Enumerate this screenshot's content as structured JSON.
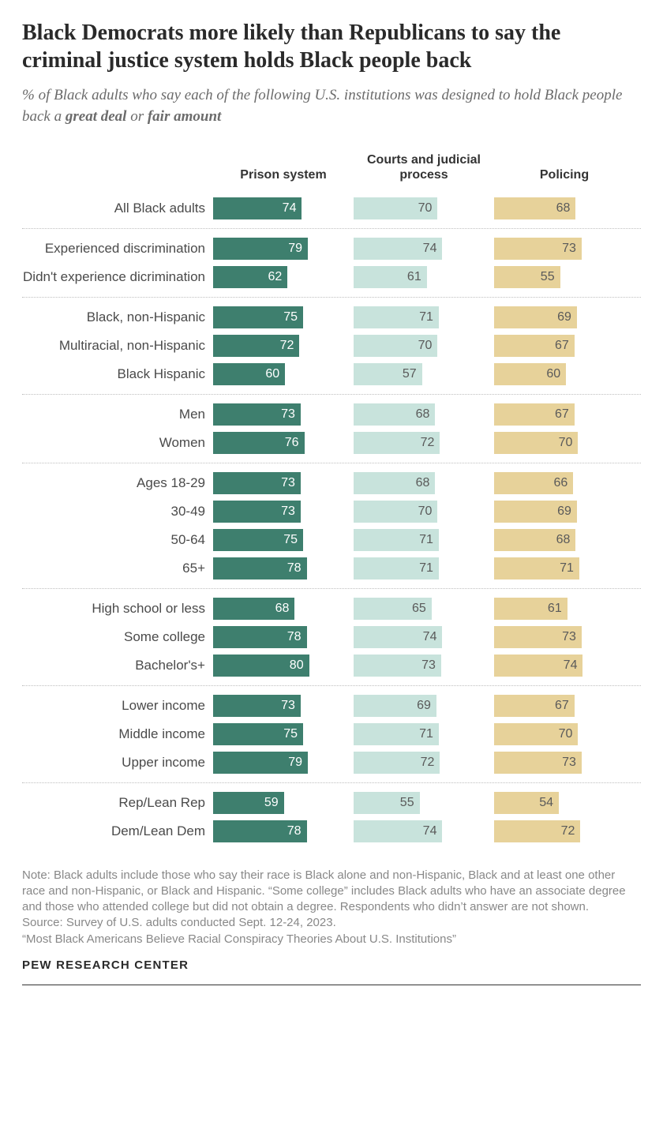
{
  "title": "Black Democrats more likely than Republicans to say the criminal justice system holds Black people back",
  "subtitle_pre": "% of Black adults who say each of the following U.S. institutions was designed to hold Black people back a ",
  "subtitle_b1": "great deal",
  "subtitle_mid": " or ",
  "subtitle_b2": "fair amount",
  "columns": [
    {
      "label": "Prison system",
      "color": "#3e7f6e",
      "text_color": "#ffffff"
    },
    {
      "label": "Courts and judicial process",
      "color": "#c8e3dc",
      "text_color": "#5a5a5a"
    },
    {
      "label": "Policing",
      "color": "#e7d29a",
      "text_color": "#5a5a5a"
    }
  ],
  "max_value": 100,
  "groups": [
    {
      "rows": [
        {
          "label": "All Black adults",
          "values": [
            74,
            70,
            68
          ]
        }
      ]
    },
    {
      "rows": [
        {
          "label": "Experienced discrimination",
          "values": [
            79,
            74,
            73
          ]
        },
        {
          "label": "Didn't experience dicrimination",
          "values": [
            62,
            61,
            55
          ]
        }
      ]
    },
    {
      "rows": [
        {
          "label": "Black, non-Hispanic",
          "values": [
            75,
            71,
            69
          ]
        },
        {
          "label": "Multiracial, non-Hispanic",
          "values": [
            72,
            70,
            67
          ]
        },
        {
          "label": "Black Hispanic",
          "values": [
            60,
            57,
            60
          ]
        }
      ]
    },
    {
      "rows": [
        {
          "label": "Men",
          "values": [
            73,
            68,
            67
          ]
        },
        {
          "label": "Women",
          "values": [
            76,
            72,
            70
          ]
        }
      ]
    },
    {
      "rows": [
        {
          "label": "Ages 18-29",
          "values": [
            73,
            68,
            66
          ]
        },
        {
          "label": "30-49",
          "values": [
            73,
            70,
            69
          ]
        },
        {
          "label": "50-64",
          "values": [
            75,
            71,
            68
          ]
        },
        {
          "label": "65+",
          "values": [
            78,
            71,
            71
          ]
        }
      ]
    },
    {
      "rows": [
        {
          "label": "High school or less",
          "values": [
            68,
            65,
            61
          ]
        },
        {
          "label": "Some college",
          "values": [
            78,
            74,
            73
          ]
        },
        {
          "label": "Bachelor's+",
          "values": [
            80,
            73,
            74
          ]
        }
      ]
    },
    {
      "rows": [
        {
          "label": "Lower income",
          "values": [
            73,
            69,
            67
          ]
        },
        {
          "label": "Middle income",
          "values": [
            75,
            71,
            70
          ]
        },
        {
          "label": "Upper income",
          "values": [
            79,
            72,
            73
          ]
        }
      ]
    },
    {
      "rows": [
        {
          "label": "Rep/Lean Rep",
          "values": [
            59,
            55,
            54
          ]
        },
        {
          "label": "Dem/Lean Dem",
          "values": [
            78,
            74,
            72
          ]
        }
      ]
    }
  ],
  "note": "Note: Black adults include those who say their race is Black alone and non-Hispanic, Black and at least one other race and non-Hispanic, or Black and Hispanic. “Some college” includes Black adults who have an associate degree and those who attended college but did not obtain a degree. Respondents who didn’t answer are not shown.",
  "source": "Source: Survey of U.S. adults conducted Sept. 12-24, 2023.",
  "ref": "“Most Black Americans Believe Racial Conspiracy Theories About U.S. Institutions”",
  "logo": "PEW RESEARCH CENTER"
}
